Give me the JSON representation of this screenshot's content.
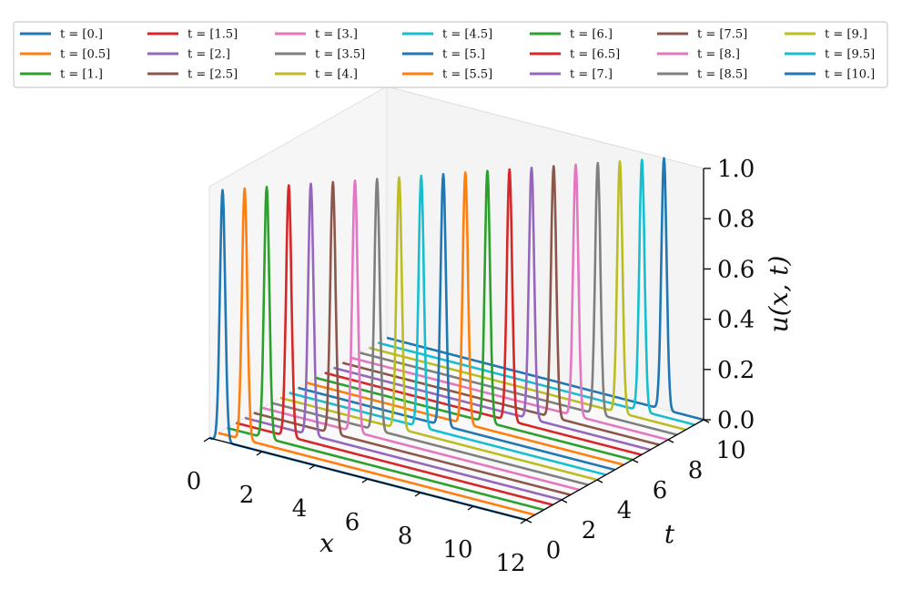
{
  "chart_data": {
    "type": "line",
    "projection": "3d-waterfall",
    "xlabel": "x",
    "ylabel": "t",
    "zlabel": "u(x, t)",
    "x_ticks": [
      "0",
      "2",
      "4",
      "6",
      "8",
      "10",
      "12"
    ],
    "t_ticks": [
      "0",
      "2",
      "4",
      "6",
      "8",
      "10"
    ],
    "z_ticks": [
      "0.0",
      "0.2",
      "0.4",
      "0.6",
      "0.8",
      "1.0"
    ],
    "xlim": [
      0,
      12
    ],
    "tlim": [
      0,
      10
    ],
    "zlim": [
      0,
      1
    ],
    "grid": false,
    "legend_position": "top",
    "legend_columns": 7,
    "pulse": {
      "shape": "gaussian",
      "amplitude": 1.0,
      "width": 0.1,
      "start_center": 0.5,
      "speed": 1.0
    },
    "series": [
      {
        "name": "t = [0.]",
        "t": 0.0,
        "peak_x": 0.5,
        "color": "#1f77b4"
      },
      {
        "name": "t = [0.5]",
        "t": 0.5,
        "peak_x": 1.0,
        "color": "#ff7f0e"
      },
      {
        "name": "t = [1.]",
        "t": 1.0,
        "peak_x": 1.5,
        "color": "#2ca02c"
      },
      {
        "name": "t = [1.5]",
        "t": 1.5,
        "peak_x": 2.0,
        "color": "#d62728"
      },
      {
        "name": "t = [2.]",
        "t": 2.0,
        "peak_x": 2.5,
        "color": "#9467bd"
      },
      {
        "name": "t = [2.5]",
        "t": 2.5,
        "peak_x": 3.0,
        "color": "#8c564b"
      },
      {
        "name": "t = [3.]",
        "t": 3.0,
        "peak_x": 3.5,
        "color": "#e377c2"
      },
      {
        "name": "t = [3.5]",
        "t": 3.5,
        "peak_x": 4.0,
        "color": "#7f7f7f"
      },
      {
        "name": "t = [4.]",
        "t": 4.0,
        "peak_x": 4.5,
        "color": "#bcbd22"
      },
      {
        "name": "t = [4.5]",
        "t": 4.5,
        "peak_x": 5.0,
        "color": "#17becf"
      },
      {
        "name": "t = [5.]",
        "t": 5.0,
        "peak_x": 5.5,
        "color": "#1f77b4"
      },
      {
        "name": "t = [5.5]",
        "t": 5.5,
        "peak_x": 6.0,
        "color": "#ff7f0e"
      },
      {
        "name": "t = [6.]",
        "t": 6.0,
        "peak_x": 6.5,
        "color": "#2ca02c"
      },
      {
        "name": "t = [6.5]",
        "t": 6.5,
        "peak_x": 7.0,
        "color": "#d62728"
      },
      {
        "name": "t = [7.]",
        "t": 7.0,
        "peak_x": 7.5,
        "color": "#9467bd"
      },
      {
        "name": "t = [7.5]",
        "t": 7.5,
        "peak_x": 8.0,
        "color": "#8c564b"
      },
      {
        "name": "t = [8.]",
        "t": 8.0,
        "peak_x": 8.5,
        "color": "#e377c2"
      },
      {
        "name": "t = [8.5]",
        "t": 8.5,
        "peak_x": 9.0,
        "color": "#7f7f7f"
      },
      {
        "name": "t = [9.]",
        "t": 9.0,
        "peak_x": 9.5,
        "color": "#bcbd22"
      },
      {
        "name": "t = [9.5]",
        "t": 9.5,
        "peak_x": 10.0,
        "color": "#17becf"
      },
      {
        "name": "t = [10.]",
        "t": 10.0,
        "peak_x": 10.5,
        "color": "#1f77b4"
      }
    ]
  }
}
